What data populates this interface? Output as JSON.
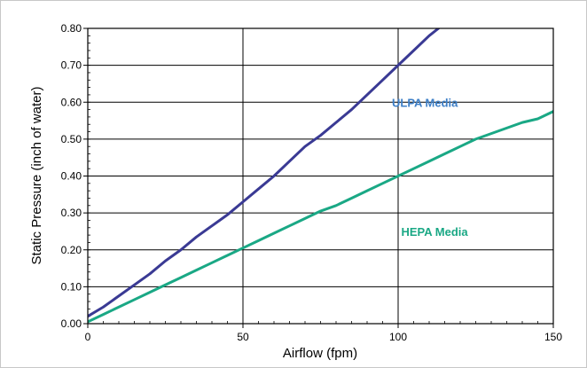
{
  "chart_data": {
    "type": "line",
    "title": "",
    "xlabel": "Airflow (fpm)",
    "ylabel": "Static Pressure (inch of water)",
    "xlim": [
      0,
      150
    ],
    "ylim": [
      0,
      0.8
    ],
    "x_ticks": [
      "0",
      "50",
      "100",
      "150"
    ],
    "y_ticks": [
      "0.00",
      "0.10",
      "0.20",
      "0.30",
      "0.40",
      "0.50",
      "0.60",
      "0.70",
      "0.80"
    ],
    "grid": true,
    "series": [
      {
        "name": "ULPA Media",
        "color": "#3a3a94",
        "label_color": "#3d7fc7",
        "x": [
          0,
          5,
          10,
          15,
          20,
          25,
          30,
          35,
          40,
          45,
          50,
          55,
          60,
          65,
          70,
          75,
          80,
          85,
          90,
          95,
          100,
          105,
          110,
          113
        ],
        "y": [
          0.02,
          0.045,
          0.075,
          0.105,
          0.135,
          0.17,
          0.2,
          0.235,
          0.265,
          0.295,
          0.33,
          0.365,
          0.4,
          0.44,
          0.48,
          0.51,
          0.545,
          0.58,
          0.62,
          0.66,
          0.7,
          0.74,
          0.78,
          0.8
        ]
      },
      {
        "name": "HEPA Media",
        "color": "#1aa885",
        "label_color": "#1aa885",
        "x": [
          0,
          5,
          10,
          15,
          20,
          25,
          30,
          35,
          40,
          45,
          50,
          55,
          60,
          65,
          70,
          75,
          80,
          85,
          90,
          95,
          100,
          105,
          110,
          115,
          120,
          125,
          130,
          135,
          140,
          145,
          150
        ],
        "y": [
          0.005,
          0.025,
          0.045,
          0.065,
          0.085,
          0.105,
          0.125,
          0.145,
          0.165,
          0.185,
          0.205,
          0.225,
          0.245,
          0.265,
          0.285,
          0.305,
          0.32,
          0.34,
          0.36,
          0.38,
          0.4,
          0.42,
          0.44,
          0.46,
          0.48,
          0.5,
          0.515,
          0.53,
          0.545,
          0.555,
          0.575
        ]
      }
    ],
    "annotations": [
      {
        "text": "ULPA Media",
        "x": 98,
        "y": 0.6,
        "color": "#3d7fc7"
      },
      {
        "text": "HEPA Media",
        "x": 101,
        "y": 0.25,
        "color": "#1aa885"
      }
    ]
  }
}
